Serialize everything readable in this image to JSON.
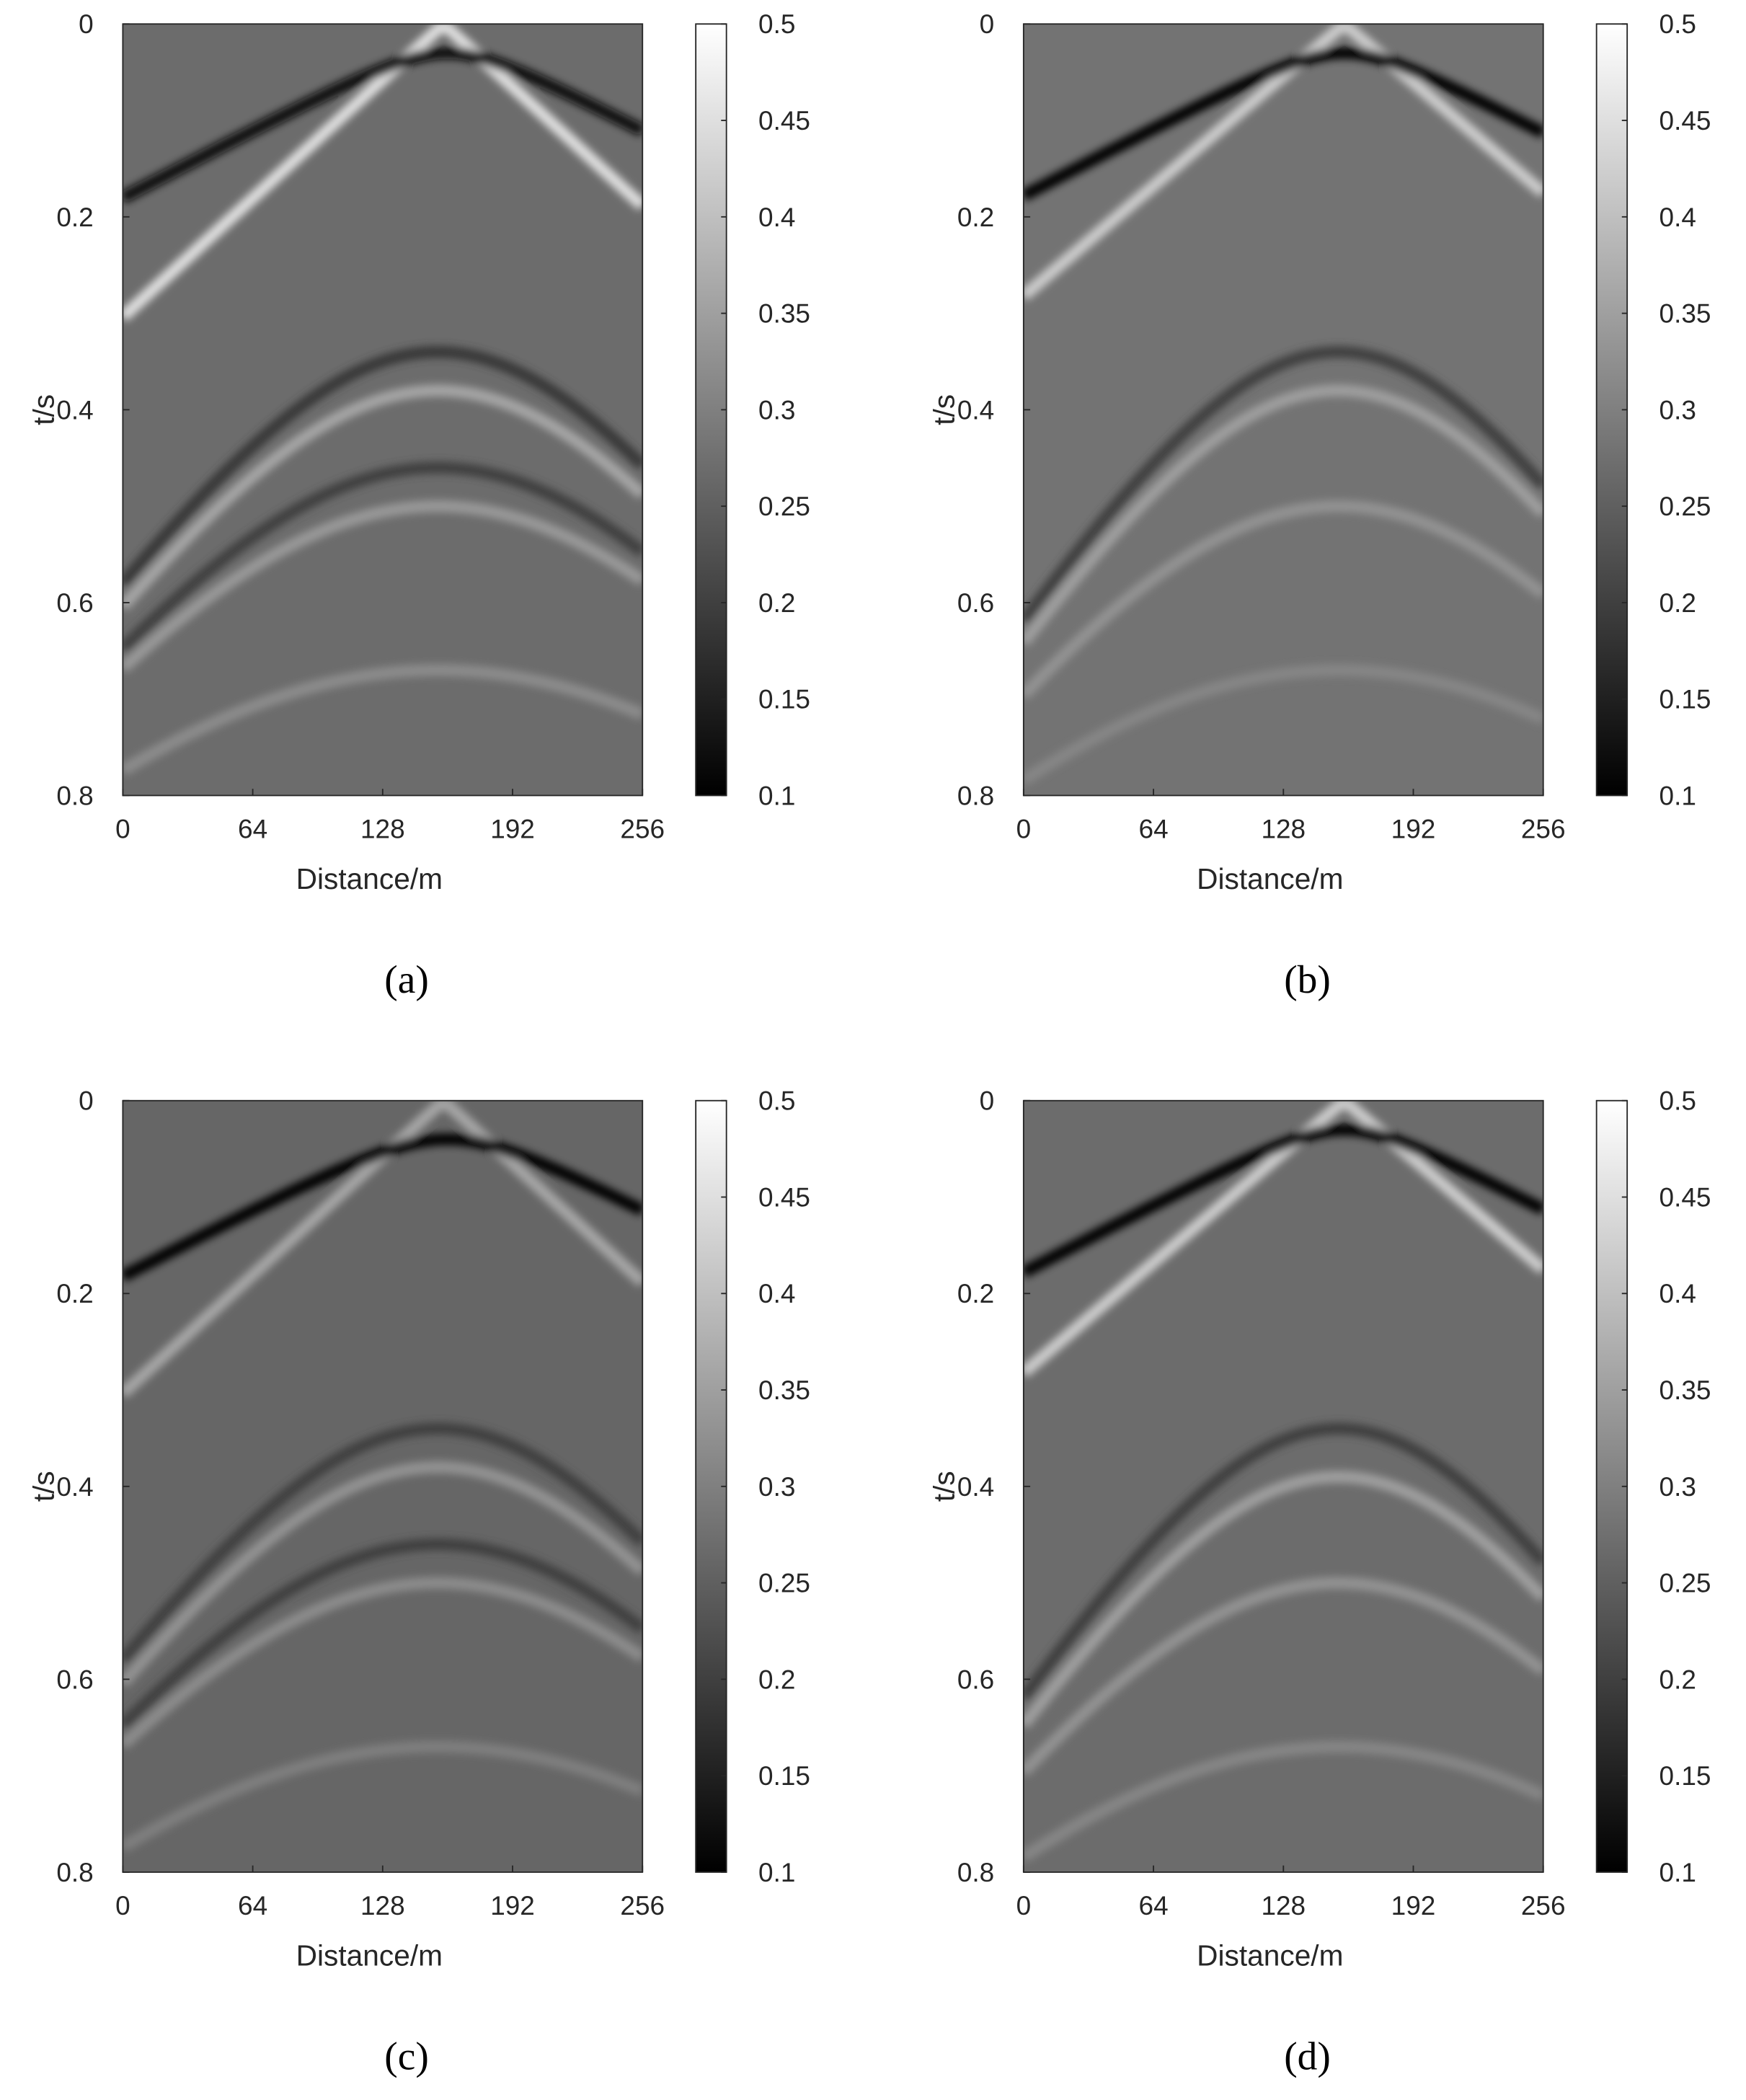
{
  "chart_data": [
    {
      "type": "image",
      "caption": "(a)",
      "xlabel": "Distance/m",
      "ylabel": "t/s",
      "xlim": [
        0,
        256
      ],
      "xticks": [
        0,
        64,
        128,
        192,
        256
      ],
      "ylim": [
        0,
        0.8
      ],
      "yticks": [
        0,
        0.2,
        0.4,
        0.6,
        0.8
      ],
      "y_reversed": true,
      "colormap": "gray",
      "clim": [
        0.1,
        0.5
      ],
      "cticks": [
        0.1,
        0.15,
        0.2,
        0.25,
        0.3,
        0.35,
        0.4,
        0.45,
        0.5
      ],
      "background": 0.27,
      "events": [
        {
          "x0": 158,
          "t0": 0.0,
          "velocity": 520,
          "amplitude": 0.45
        },
        {
          "x0": 160,
          "t0": 0.03,
          "velocity": 900,
          "amplitude": 0.12
        },
        {
          "x0": 155,
          "t0": 0.34,
          "velocity": 330,
          "amplitude": 0.19
        },
        {
          "x0": 155,
          "t0": 0.38,
          "velocity": 330,
          "amplitude": 0.36
        },
        {
          "x0": 155,
          "t0": 0.46,
          "velocity": 340,
          "amplitude": 0.2
        },
        {
          "x0": 155,
          "t0": 0.5,
          "velocity": 350,
          "amplitude": 0.34
        },
        {
          "x0": 155,
          "t0": 0.67,
          "velocity": 400,
          "amplitude": 0.32
        }
      ]
    },
    {
      "type": "image",
      "caption": "(b)",
      "xlabel": "Distance/m",
      "ylabel": "t/s",
      "xlim": [
        0,
        256
      ],
      "xticks": [
        0,
        64,
        128,
        192,
        256
      ],
      "ylim": [
        0,
        0.8
      ],
      "yticks": [
        0,
        0.2,
        0.4,
        0.6,
        0.8
      ],
      "y_reversed": true,
      "colormap": "gray",
      "clim": [
        0.1,
        0.5
      ],
      "cticks": [
        0.1,
        0.15,
        0.2,
        0.25,
        0.3,
        0.35,
        0.4,
        0.45,
        0.5
      ],
      "background": 0.28,
      "events": [
        {
          "x0": 158,
          "t0": 0.0,
          "velocity": 560,
          "amplitude": 0.42
        },
        {
          "x0": 158,
          "t0": 0.03,
          "velocity": 900,
          "amplitude": 0.1
        },
        {
          "x0": 155,
          "t0": 0.34,
          "velocity": 300,
          "amplitude": 0.2
        },
        {
          "x0": 155,
          "t0": 0.38,
          "velocity": 300,
          "amplitude": 0.35
        },
        {
          "x0": 155,
          "t0": 0.5,
          "velocity": 320,
          "amplitude": 0.33
        },
        {
          "x0": 155,
          "t0": 0.67,
          "velocity": 380,
          "amplitude": 0.31
        }
      ]
    },
    {
      "type": "image",
      "caption": "(c)",
      "xlabel": "Distance/m",
      "ylabel": "t/s",
      "xlim": [
        0,
        256
      ],
      "xticks": [
        0,
        64,
        128,
        192,
        256
      ],
      "ylim": [
        0,
        0.8
      ],
      "yticks": [
        0,
        0.2,
        0.4,
        0.6,
        0.8
      ],
      "y_reversed": true,
      "colormap": "gray",
      "clim": [
        0.1,
        0.5
      ],
      "cticks": [
        0.1,
        0.15,
        0.2,
        0.25,
        0.3,
        0.35,
        0.4,
        0.45,
        0.5
      ],
      "background": 0.26,
      "events": [
        {
          "x0": 158,
          "t0": 0.0,
          "velocity": 520,
          "amplitude": 0.36
        },
        {
          "x0": 160,
          "t0": 0.04,
          "velocity": 900,
          "amplitude": 0.1
        },
        {
          "x0": 155,
          "t0": 0.34,
          "velocity": 330,
          "amplitude": 0.2
        },
        {
          "x0": 155,
          "t0": 0.38,
          "velocity": 330,
          "amplitude": 0.33
        },
        {
          "x0": 155,
          "t0": 0.46,
          "velocity": 340,
          "amplitude": 0.2
        },
        {
          "x0": 155,
          "t0": 0.5,
          "velocity": 350,
          "amplitude": 0.32
        },
        {
          "x0": 155,
          "t0": 0.67,
          "velocity": 400,
          "amplitude": 0.3
        }
      ]
    },
    {
      "type": "image",
      "caption": "(d)",
      "xlabel": "Distance/m",
      "ylabel": "t/s",
      "xlim": [
        0,
        256
      ],
      "xticks": [
        0,
        64,
        128,
        192,
        256
      ],
      "ylim": [
        0,
        0.8
      ],
      "yticks": [
        0,
        0.2,
        0.4,
        0.6,
        0.8
      ],
      "y_reversed": true,
      "colormap": "gray",
      "clim": [
        0.1,
        0.5
      ],
      "cticks": [
        0.1,
        0.15,
        0.2,
        0.25,
        0.3,
        0.35,
        0.4,
        0.45,
        0.5
      ],
      "background": 0.27,
      "events": [
        {
          "x0": 158,
          "t0": 0.0,
          "velocity": 560,
          "amplitude": 0.42
        },
        {
          "x0": 158,
          "t0": 0.03,
          "velocity": 900,
          "amplitude": 0.1
        },
        {
          "x0": 155,
          "t0": 0.34,
          "velocity": 300,
          "amplitude": 0.2
        },
        {
          "x0": 155,
          "t0": 0.39,
          "velocity": 300,
          "amplitude": 0.35
        },
        {
          "x0": 155,
          "t0": 0.5,
          "velocity": 320,
          "amplitude": 0.33
        },
        {
          "x0": 155,
          "t0": 0.67,
          "velocity": 380,
          "amplitude": 0.31
        }
      ]
    }
  ]
}
